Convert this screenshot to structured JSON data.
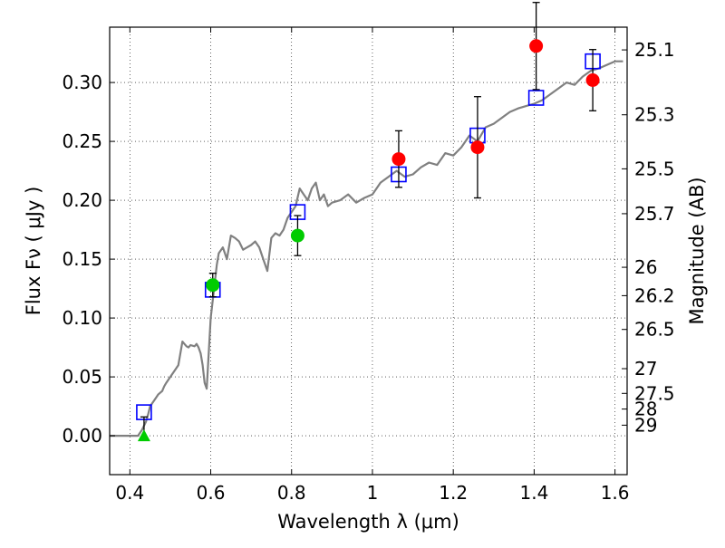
{
  "chart_data": {
    "type": "scatter",
    "xlabel": "Wavelength  λ (μm)",
    "ylabel": "Flux  Fν  ( μJy )",
    "ylabel_right": "Magnitude (AB)",
    "xlim": [
      0.35,
      1.63
    ],
    "ylim": [
      -0.033,
      0.347
    ],
    "grid": true,
    "xticks": [
      0.4,
      0.6,
      0.8,
      1.0,
      1.2,
      1.4,
      1.6
    ],
    "xtick_labels": [
      "0.4",
      "0.6",
      "0.8",
      "1",
      "1.2",
      "1.4",
      "1.6"
    ],
    "yticks": [
      0.0,
      0.05,
      0.1,
      0.15,
      0.2,
      0.25,
      0.3
    ],
    "ytick_labels": [
      "0.00",
      "0.05",
      "0.10",
      "0.15",
      "0.20",
      "0.25",
      "0.30"
    ],
    "right_ticks": [
      {
        "label": "25.1",
        "flux": 0.3277
      },
      {
        "label": "25.3",
        "flux": 0.2726
      },
      {
        "label": "25.5",
        "flux": 0.2267
      },
      {
        "label": "25.7",
        "flux": 0.1886
      },
      {
        "label": "26",
        "flux": 0.1431
      },
      {
        "label": "26.2",
        "flux": 0.119
      },
      {
        "label": "26.5",
        "flux": 0.0903
      },
      {
        "label": "27",
        "flux": 0.057
      },
      {
        "label": "27.5",
        "flux": 0.036
      },
      {
        "label": "28",
        "flux": 0.0227
      },
      {
        "label": "29",
        "flux": 0.009
      }
    ],
    "series": [
      {
        "kind": "sed-template-line",
        "color": "#808080",
        "x": [
          0.35,
          0.42,
          0.43,
          0.44,
          0.445,
          0.45,
          0.46,
          0.47,
          0.48,
          0.485,
          0.49,
          0.5,
          0.51,
          0.52,
          0.53,
          0.535,
          0.54,
          0.545,
          0.55,
          0.56,
          0.565,
          0.57,
          0.575,
          0.58,
          0.585,
          0.59,
          0.6,
          0.61,
          0.615,
          0.62,
          0.63,
          0.64,
          0.65,
          0.66,
          0.67,
          0.68,
          0.69,
          0.7,
          0.71,
          0.72,
          0.73,
          0.74,
          0.75,
          0.76,
          0.77,
          0.78,
          0.79,
          0.8,
          0.81,
          0.82,
          0.83,
          0.84,
          0.85,
          0.86,
          0.87,
          0.88,
          0.89,
          0.9,
          0.92,
          0.94,
          0.96,
          0.98,
          1.0,
          1.02,
          1.04,
          1.06,
          1.08,
          1.1,
          1.12,
          1.14,
          1.16,
          1.18,
          1.2,
          1.22,
          1.24,
          1.26,
          1.28,
          1.3,
          1.32,
          1.34,
          1.36,
          1.38,
          1.4,
          1.42,
          1.44,
          1.46,
          1.48,
          1.5,
          1.52,
          1.54,
          1.56,
          1.58,
          1.6,
          1.62
        ],
        "y": [
          0.0,
          0.0,
          0.005,
          0.012,
          0.018,
          0.025,
          0.03,
          0.035,
          0.038,
          0.042,
          0.045,
          0.05,
          0.055,
          0.06,
          0.08,
          0.078,
          0.076,
          0.075,
          0.077,
          0.076,
          0.078,
          0.075,
          0.07,
          0.06,
          0.045,
          0.04,
          0.1,
          0.13,
          0.145,
          0.155,
          0.16,
          0.15,
          0.17,
          0.168,
          0.165,
          0.158,
          0.16,
          0.162,
          0.165,
          0.16,
          0.15,
          0.14,
          0.168,
          0.172,
          0.17,
          0.175,
          0.185,
          0.19,
          0.195,
          0.21,
          0.205,
          0.2,
          0.21,
          0.215,
          0.2,
          0.205,
          0.195,
          0.198,
          0.2,
          0.205,
          0.198,
          0.202,
          0.205,
          0.215,
          0.22,
          0.225,
          0.22,
          0.222,
          0.228,
          0.232,
          0.23,
          0.24,
          0.238,
          0.245,
          0.255,
          0.25,
          0.262,
          0.265,
          0.27,
          0.275,
          0.278,
          0.28,
          0.282,
          0.285,
          0.29,
          0.295,
          0.3,
          0.298,
          0.305,
          0.31,
          0.312,
          0.315,
          0.318,
          0.318
        ]
      },
      {
        "kind": "model-photometry",
        "marker": "open-square",
        "color": "#0000ff",
        "x": [
          0.435,
          0.605,
          0.815,
          1.065,
          1.26,
          1.405,
          1.545
        ],
        "y": [
          0.02,
          0.124,
          0.19,
          0.222,
          0.255,
          0.287,
          0.318
        ]
      },
      {
        "kind": "observed-photometry",
        "marker": "circle",
        "color": "#ff0000",
        "x": [
          1.065,
          1.26,
          1.405,
          1.545
        ],
        "y": [
          0.235,
          0.245,
          0.331,
          0.302
        ],
        "err": [
          0.024,
          0.043,
          0.037,
          0.026
        ]
      },
      {
        "kind": "observed-photometry",
        "marker": "circle",
        "color": "#00cc00",
        "x": [
          0.605,
          0.815
        ],
        "y": [
          0.128,
          0.17
        ],
        "err": [
          0.01,
          0.017
        ]
      },
      {
        "kind": "upper-limit",
        "marker": "triangle",
        "color": "#00cc00",
        "x": [
          0.435
        ],
        "y": [
          0.0
        ],
        "err": [
          0.016
        ]
      }
    ]
  }
}
